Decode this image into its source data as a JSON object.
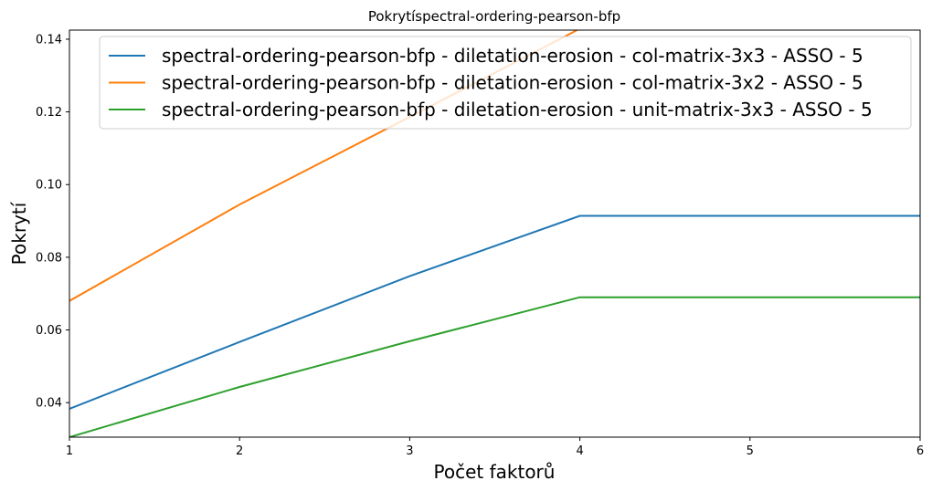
{
  "chart_data": {
    "type": "line",
    "title": "Pokrytíspectral-ordering-pearson-bfp",
    "xlabel": "Počet faktorů",
    "ylabel": "Pokrytí",
    "xlim": [
      1,
      6
    ],
    "ylim": [
      0.0305,
      0.1425
    ],
    "xticks": [
      1,
      2,
      3,
      4,
      5,
      6
    ],
    "xtick_labels": [
      "1",
      "2",
      "3",
      "4",
      "5",
      "6"
    ],
    "yticks": [
      0.04,
      0.06,
      0.08,
      0.1,
      0.12,
      0.14
    ],
    "ytick_labels": [
      "0.04",
      "0.06",
      "0.08",
      "0.10",
      "0.12",
      "0.14"
    ],
    "grid": false,
    "legend_position": "top-right",
    "series": [
      {
        "name": "spectral-ordering-pearson-bfp - diletation-erosion - col-matrix-3x3 - ASSO - 5",
        "color": "#1f77b4",
        "x": [
          1,
          2,
          3,
          4,
          5,
          6
        ],
        "y": [
          0.0383,
          0.0567,
          0.0748,
          0.0914,
          0.0914,
          0.0914
        ]
      },
      {
        "name": "spectral-ordering-pearson-bfp - diletation-erosion - col-matrix-3x2 - ASSO - 5",
        "color": "#ff7f0e",
        "x": [
          1,
          2,
          3,
          4,
          5,
          6
        ],
        "y": [
          0.068,
          0.0945,
          0.1186,
          0.1429,
          0.1429,
          0.1429
        ]
      },
      {
        "name": "spectral-ordering-pearson-bfp - diletation-erosion - unit-matrix-3x3 - ASSO - 5",
        "color": "#2ca02c",
        "x": [
          1,
          2,
          3,
          4,
          5,
          6
        ],
        "y": [
          0.0305,
          0.0443,
          0.0569,
          0.069,
          0.069,
          0.069
        ]
      }
    ]
  }
}
